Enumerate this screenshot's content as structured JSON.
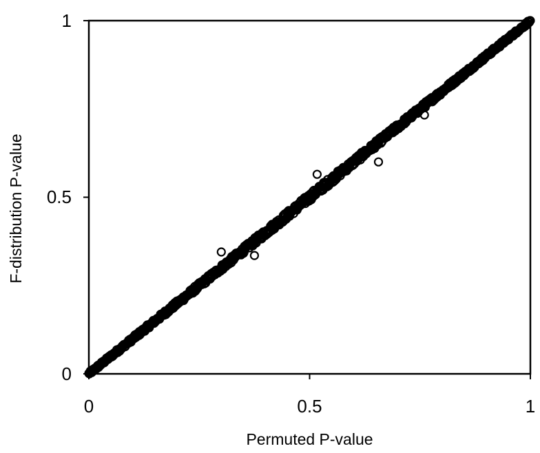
{
  "chart_data": {
    "type": "scatter",
    "title": "",
    "xlabel": "Permuted P-value",
    "ylabel": "F-distribution P-value",
    "xlim": [
      0,
      1
    ],
    "ylim": [
      0,
      1
    ],
    "xticks": [
      "0",
      "0.5",
      "1"
    ],
    "yticks": [
      "0",
      "0.5",
      "1"
    ],
    "grid": false,
    "legend": "none",
    "marker": "open-circle",
    "marker_color": "#000000",
    "trend": "points lie along the diagonal y = x from (0,0) to (1,1)",
    "notable_points": [
      {
        "x": 0.656,
        "y": 0.6
      },
      {
        "x": 0.517,
        "y": 0.565
      },
      {
        "x": 0.375,
        "y": 0.335
      },
      {
        "x": 0.3,
        "y": 0.345
      },
      {
        "x": 0.76,
        "y": 0.733
      }
    ]
  }
}
